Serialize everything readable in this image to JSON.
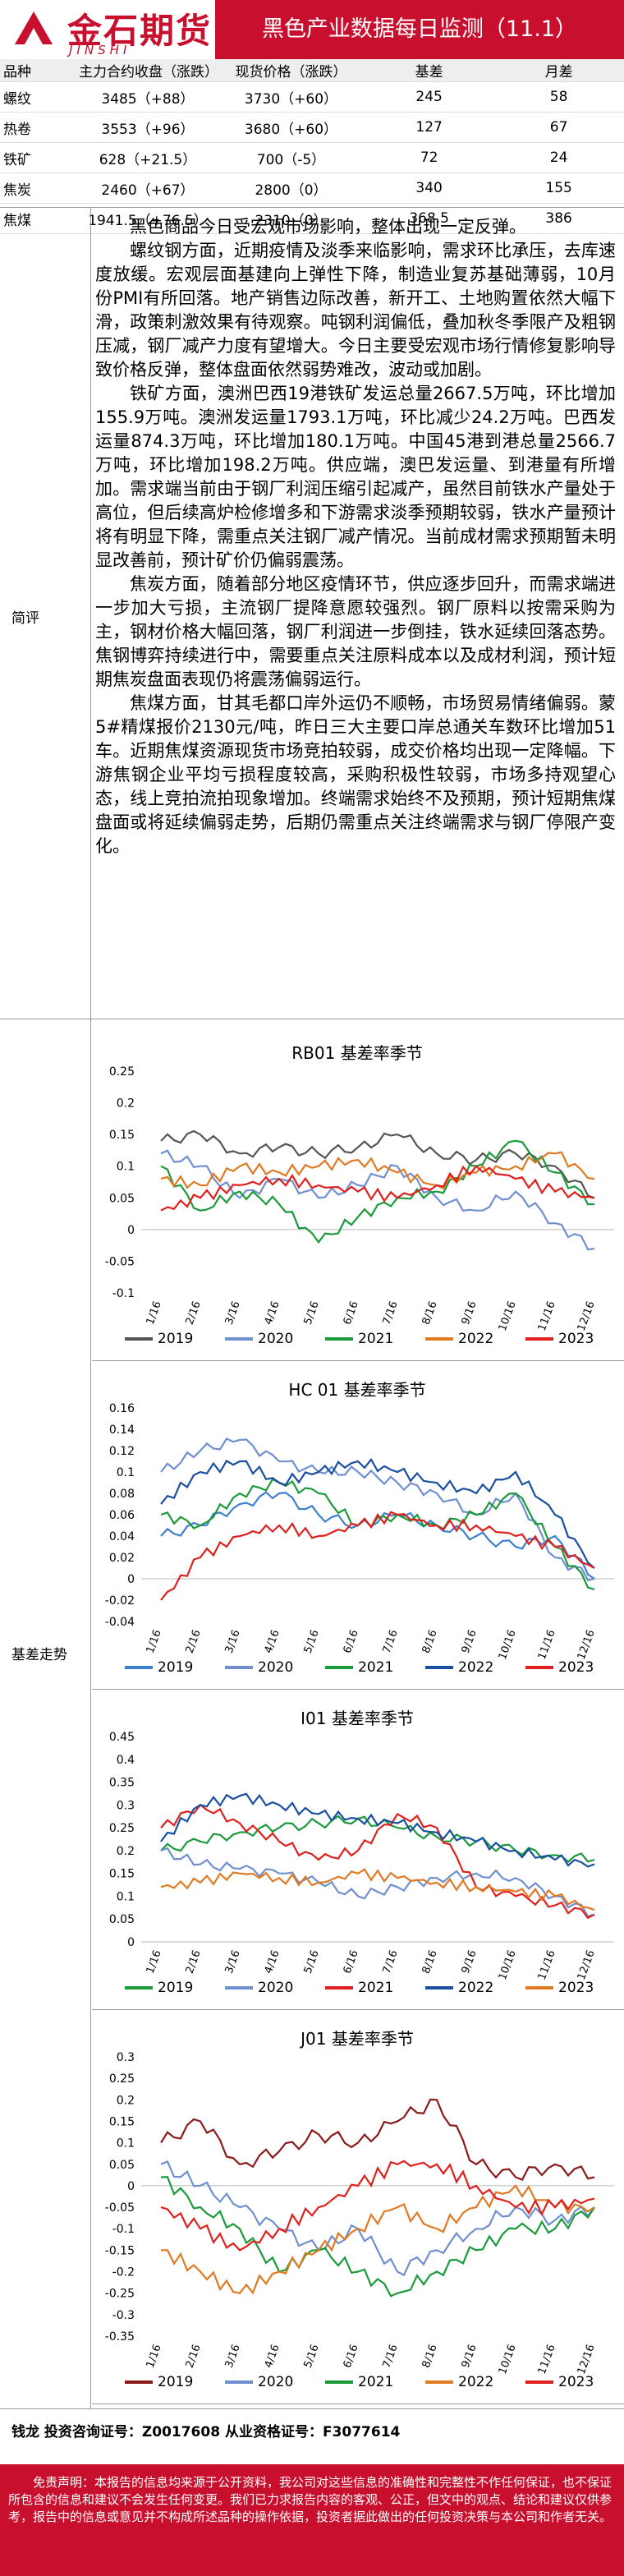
{
  "header": {
    "logo_cn": "金石期货",
    "logo_en": "JINSHI FUTURES",
    "title": "黑色产业数据每日监测（11.1）"
  },
  "table": {
    "headers": [
      "品种",
      "主力合约收盘（涨跌）",
      "现货价格（涨跌）",
      "基差",
      "月差"
    ],
    "rows": [
      [
        "螺纹",
        "3485（+88）",
        "3730（+60）",
        "245",
        "58"
      ],
      [
        "热卷",
        "3553（+96）",
        "3680（+60）",
        "127",
        "67"
      ],
      [
        "铁矿",
        "628（+21.5）",
        "700（-5）",
        "72",
        "24"
      ],
      [
        "焦炭",
        "2460（+67）",
        "2800（0）",
        "340",
        "155"
      ],
      [
        "焦煤",
        "1941.5（+76.5）",
        "2310（0）",
        "368.5",
        "386"
      ]
    ]
  },
  "remark": {
    "label": "简评",
    "paragraphs": [
      "黑色商品今日受宏观市场影响，整体出现一定反弹。",
      "螺纹钢方面，近期疫情及淡季来临影响，需求环比承压，去库速度放缓。宏观层面基建向上弹性下降，制造业复苏基础薄弱，10月份PMI有所回落。地产销售边际改善，新开工、土地购置依然大幅下滑，政策刺激效果有待观察。吨钢利润偏低，叠加秋冬季限产及粗钢压减，钢厂减产力度有望增大。今日主要受宏观市场行情修复影响导致价格反弹，整体盘面依然弱势难改，波动或加剧。",
      "铁矿方面，澳洲巴西19港铁矿发运总量2667.5万吨，环比增加155.9万吨。澳洲发运量1793.1万吨，环比减少24.2万吨。巴西发运量874.3万吨，环比增加180.1万吨。中国45港到港总量2566.7万吨，环比增加198.2万吨。供应端，澳巴发运量、到港量有所增加。需求端当前由于钢厂利润压缩引起减产，虽然目前铁水产量处于高位，但后续高炉检修增多和下游需求淡季预期较弱，铁水产量预计将有明显下降，需重点关注钢厂减产情况。当前成材需求预期暂未明显改善前，预计矿价仍偏弱震荡。",
      "焦炭方面，随着部分地区疫情环节，供应逐步回升，而需求端进一步加大亏损，主流钢厂提降意愿较强烈。钢厂原料以按需采购为主，钢材价格大幅回落，钢厂利润进一步倒挂，铁水延续回落态势。焦钢博弈持续进行中，需要重点关注原料成本以及成材利润，预计短期焦炭盘面表现仍将震荡偏弱运行。",
      "焦煤方面，甘其毛都口岸外运仍不顺畅，市场贸易情绪偏弱。蒙5#精煤报价2130元/吨，昨日三大主要口岸总通关车数环比增加51车。近期焦煤资源现货市场竞拍较弱，成交价格均出现一定降幅。下游焦钢企业平均亏损程度较高，采购积极性较弱，市场多持观望心态，线上竞拍流拍现象增加。终端需求始终不及预期，预计短期焦煤盘面或将延续偏弱走势，后期仍需重点关注终端需求与钢厂停限产变化。"
    ]
  },
  "basis_label": "基差走势",
  "colors": {
    "brand_red": "#c8102e",
    "y2019": "#555555",
    "y2020": "#6f8fcf",
    "y2021": "#1a9a3a",
    "y2022": "#e07a22",
    "y2023": "#e0201c",
    "c2019b": "#3c7fcf",
    "c2019c": "#8b1a1a"
  },
  "charts": [
    {
      "chart_data": {
        "type": "line",
        "title": "RB01 基差率季节",
        "x": [
          "1/16",
          "2/16",
          "3/16",
          "4/16",
          "5/16",
          "6/16",
          "7/16",
          "8/16",
          "9/16",
          "10/16",
          "11/16",
          "12/16"
        ],
        "yticks": [
          "0.25",
          "0.2",
          "0.15",
          "0.1",
          "0.05",
          "0",
          "-0.05",
          "-0.1"
        ],
        "ylim": [
          -0.1,
          0.25
        ],
        "series": [
          {
            "name": "2019",
            "values": [
              0.14,
              0.15,
              0.12,
              0.13,
              0.12,
              0.13,
              0.15,
              0.12,
              0.11,
              0.12,
              0.1,
              0.05
            ]
          },
          {
            "name": "2020",
            "values": [
              0.12,
              0.1,
              0.05,
              0.08,
              0.05,
              0.07,
              0.1,
              0.05,
              0.03,
              0.06,
              0.01,
              -0.03
            ]
          },
          {
            "name": "2021",
            "values": [
              0.1,
              0.03,
              0.06,
              0.04,
              -0.02,
              0.02,
              0.05,
              0.06,
              0.1,
              0.14,
              0.09,
              0.04
            ]
          },
          {
            "name": "2022",
            "values": [
              0.08,
              0.07,
              0.1,
              0.09,
              0.1,
              0.11,
              0.09,
              0.07,
              0.09,
              0.1,
              0.12,
              0.08
            ]
          },
          {
            "name": "2023",
            "values": [
              0.03,
              0.05,
              0.07,
              0.08,
              0.07,
              0.06,
              0.05,
              0.07,
              0.1,
              0.08,
              0.06,
              0.05
            ]
          }
        ]
      }
    },
    {
      "chart_data": {
        "type": "line",
        "title": "HC 01 基差率季节",
        "x": [
          "1/16",
          "2/16",
          "3/16",
          "4/16",
          "5/16",
          "6/16",
          "7/16",
          "8/16",
          "9/16",
          "10/16",
          "11/16",
          "12/16"
        ],
        "yticks": [
          "0.16",
          "0.14",
          "0.12",
          "0.1",
          "0.08",
          "0.06",
          "0.04",
          "0.02",
          "0",
          "-0.02",
          "-0.04"
        ],
        "ylim": [
          -0.04,
          0.16
        ],
        "series": [
          {
            "name": "2019",
            "values": [
              0.04,
              0.05,
              0.07,
              0.08,
              0.06,
              0.05,
              0.06,
              0.05,
              0.04,
              0.03,
              0.04,
              0.0
            ]
          },
          {
            "name": "2020",
            "values": [
              0.1,
              0.12,
              0.13,
              0.11,
              0.1,
              0.1,
              0.09,
              0.08,
              0.06,
              0.08,
              0.02,
              0.0
            ]
          },
          {
            "name": "2021",
            "values": [
              0.06,
              0.05,
              0.08,
              0.09,
              0.08,
              0.05,
              0.06,
              0.05,
              0.06,
              0.08,
              0.03,
              -0.01
            ]
          },
          {
            "name": "2022",
            "values": [
              0.07,
              0.1,
              0.11,
              0.09,
              0.1,
              0.11,
              0.1,
              0.09,
              0.08,
              0.1,
              0.06,
              0.01
            ]
          },
          {
            "name": "2023",
            "values": [
              -0.02,
              0.02,
              0.04,
              0.05,
              0.04,
              0.05,
              0.06,
              0.05,
              0.05,
              0.04,
              0.03,
              0.01
            ]
          }
        ]
      }
    },
    {
      "chart_data": {
        "type": "line",
        "title": "I01 基差率季节",
        "x": [
          "1/16",
          "2/16",
          "3/16",
          "4/16",
          "5/16",
          "6/16",
          "7/16",
          "8/16",
          "9/16",
          "10/16",
          "11/16",
          "12/16"
        ],
        "yticks": [
          "0.45",
          "0.4",
          "0.35",
          "0.3",
          "0.25",
          "0.2",
          "0.15",
          "0.1",
          "0.05",
          "0"
        ],
        "ylim": [
          0,
          0.45
        ],
        "series": [
          {
            "name": "2019",
            "values": [
              0.2,
              0.22,
              0.24,
              0.25,
              0.26,
              0.27,
              0.25,
              0.23,
              0.22,
              0.2,
              0.19,
              0.18
            ]
          },
          {
            "name": "2020",
            "values": [
              0.2,
              0.17,
              0.16,
              0.15,
              0.13,
              0.1,
              0.12,
              0.14,
              0.15,
              0.14,
              0.1,
              0.06
            ]
          },
          {
            "name": "2021",
            "values": [
              0.25,
              0.3,
              0.26,
              0.22,
              0.18,
              0.2,
              0.28,
              0.25,
              0.12,
              0.1,
              0.08,
              0.06
            ]
          },
          {
            "name": "2022",
            "values": [
              0.22,
              0.3,
              0.32,
              0.3,
              0.28,
              0.27,
              0.26,
              0.24,
              0.22,
              0.2,
              0.18,
              0.17
            ]
          },
          {
            "name": "2023",
            "values": [
              0.12,
              0.13,
              0.15,
              0.14,
              0.13,
              0.15,
              0.14,
              0.13,
              0.12,
              0.11,
              0.1,
              0.07
            ]
          }
        ]
      }
    },
    {
      "chart_data": {
        "type": "line",
        "title": "J01 基差率季节",
        "x": [
          "1/16",
          "2/16",
          "3/16",
          "4/16",
          "5/16",
          "6/16",
          "7/16",
          "8/16",
          "9/16",
          "10/16",
          "11/16",
          "12/16"
        ],
        "yticks": [
          "0.3",
          "0.25",
          "0.2",
          "0.15",
          "0.1",
          "0.05",
          "0",
          "-0.05",
          "-0.1",
          "-0.15",
          "-0.2",
          "-0.25",
          "-0.3",
          "-0.35"
        ],
        "ylim": [
          -0.35,
          0.3
        ],
        "series": [
          {
            "name": "2019",
            "values": [
              0.1,
              0.15,
              0.05,
              0.08,
              0.12,
              0.1,
              0.15,
              0.2,
              0.05,
              0.02,
              0.05,
              0.02
            ]
          },
          {
            "name": "2020",
            "values": [
              0.05,
              0.0,
              -0.05,
              -0.1,
              -0.15,
              -0.1,
              -0.2,
              -0.15,
              -0.1,
              -0.05,
              -0.08,
              -0.05
            ]
          },
          {
            "name": "2021",
            "values": [
              0.02,
              -0.05,
              -0.1,
              -0.2,
              -0.15,
              -0.2,
              -0.25,
              -0.2,
              -0.15,
              -0.1,
              -0.1,
              -0.05
            ]
          },
          {
            "name": "2022",
            "values": [
              -0.15,
              -0.2,
              -0.25,
              -0.2,
              -0.15,
              -0.1,
              -0.05,
              -0.1,
              -0.05,
              0.0,
              -0.05,
              -0.05
            ]
          },
          {
            "name": "2023",
            "values": [
              -0.05,
              -0.1,
              -0.15,
              -0.1,
              -0.05,
              0.0,
              0.05,
              0.05,
              0.0,
              -0.05,
              -0.05,
              -0.03
            ]
          }
        ]
      }
    }
  ],
  "footer": {
    "contact": "钱龙  投资咨询证号：Z0017608  从业资格证号：F3077614",
    "disclaimer": "免责声明：本报告的信息均来源于公开资料，我公司对这些信息的准确性和完整性不作任何保证，也不保证所包含的信息和建议不会发生任何变更。我们已力求报告内容的客观、公正，但文中的观点、结论和建议仅供参考，报告中的信息或意见并不构成所述品种的操作依据，投资者据此做出的任何投资决策与本公司和作者无关。"
  }
}
